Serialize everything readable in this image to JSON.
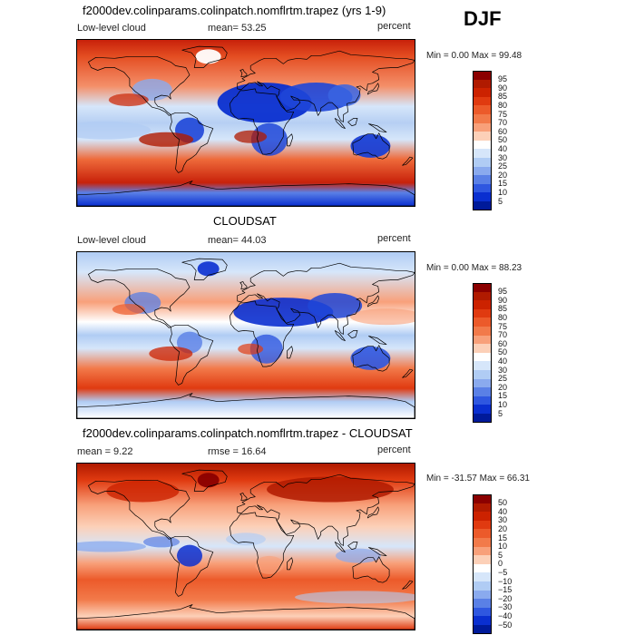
{
  "season": "DJF",
  "panels": [
    {
      "title": "f2000dev.colinparams.colinpatch.nomflrtm.trapez (yrs 1-9)",
      "left_label": "Low-level cloud",
      "stat_label": "mean=  53.25",
      "units": "percent",
      "minmax": "Min =    0.00 Max =  99.48",
      "scale": "abs",
      "colorbar": {
        "labels": [
          "95",
          "90",
          "85",
          "80",
          "75",
          "70",
          "60",
          "50",
          "40",
          "30",
          "25",
          "20",
          "15",
          "10",
          "5"
        ],
        "colors": [
          "#8B0000",
          "#B01A00",
          "#CC2200",
          "#E03A10",
          "#EC5A2A",
          "#F27A4A",
          "#F8A07A",
          "#FCD0B8",
          "#FFFFFF",
          "#D6E6FA",
          "#B0CCF4",
          "#8AAAEE",
          "#5A80E6",
          "#2F57E0",
          "#0A2FD0",
          "#001A9A"
        ]
      }
    },
    {
      "title": "CLOUDSAT",
      "left_label": "Low-level cloud",
      "stat_label": "mean=  44.03",
      "units": "percent",
      "minmax": "Min =    0.00 Max =  88.23",
      "scale": "abs",
      "colorbar": {
        "labels": [
          "95",
          "90",
          "85",
          "80",
          "75",
          "70",
          "60",
          "50",
          "40",
          "30",
          "25",
          "20",
          "15",
          "10",
          "5"
        ],
        "colors": [
          "#8B0000",
          "#B01A00",
          "#CC2200",
          "#E03A10",
          "#EC5A2A",
          "#F27A4A",
          "#F8A07A",
          "#FCD0B8",
          "#FFFFFF",
          "#D6E6FA",
          "#B0CCF4",
          "#8AAAEE",
          "#5A80E6",
          "#2F57E0",
          "#0A2FD0",
          "#001A9A"
        ]
      }
    },
    {
      "title": "f2000dev.colinparams.colinpatch.nomflrtm.trapez - CLOUDSAT",
      "left_label": "mean =    9.22",
      "stat_label": "rmse =  16.64",
      "units": "percent",
      "minmax": "Min = -31.57 Max =  66.31",
      "scale": "diff",
      "colorbar": {
        "labels": [
          "50",
          "40",
          "30",
          "20",
          "15",
          "10",
          "5",
          "0",
          "−5",
          "−10",
          "−15",
          "−20",
          "−30",
          "−40",
          "−50"
        ],
        "colors": [
          "#8B0000",
          "#B01A00",
          "#CC2200",
          "#E03A10",
          "#EC5A2A",
          "#F27A4A",
          "#F8A07A",
          "#FCD0B8",
          "#FFFFFF",
          "#D6E6FA",
          "#B0CCF4",
          "#8AAAEE",
          "#5A80E6",
          "#2F57E0",
          "#0A2FD0",
          "#001A9A"
        ]
      }
    }
  ]
}
